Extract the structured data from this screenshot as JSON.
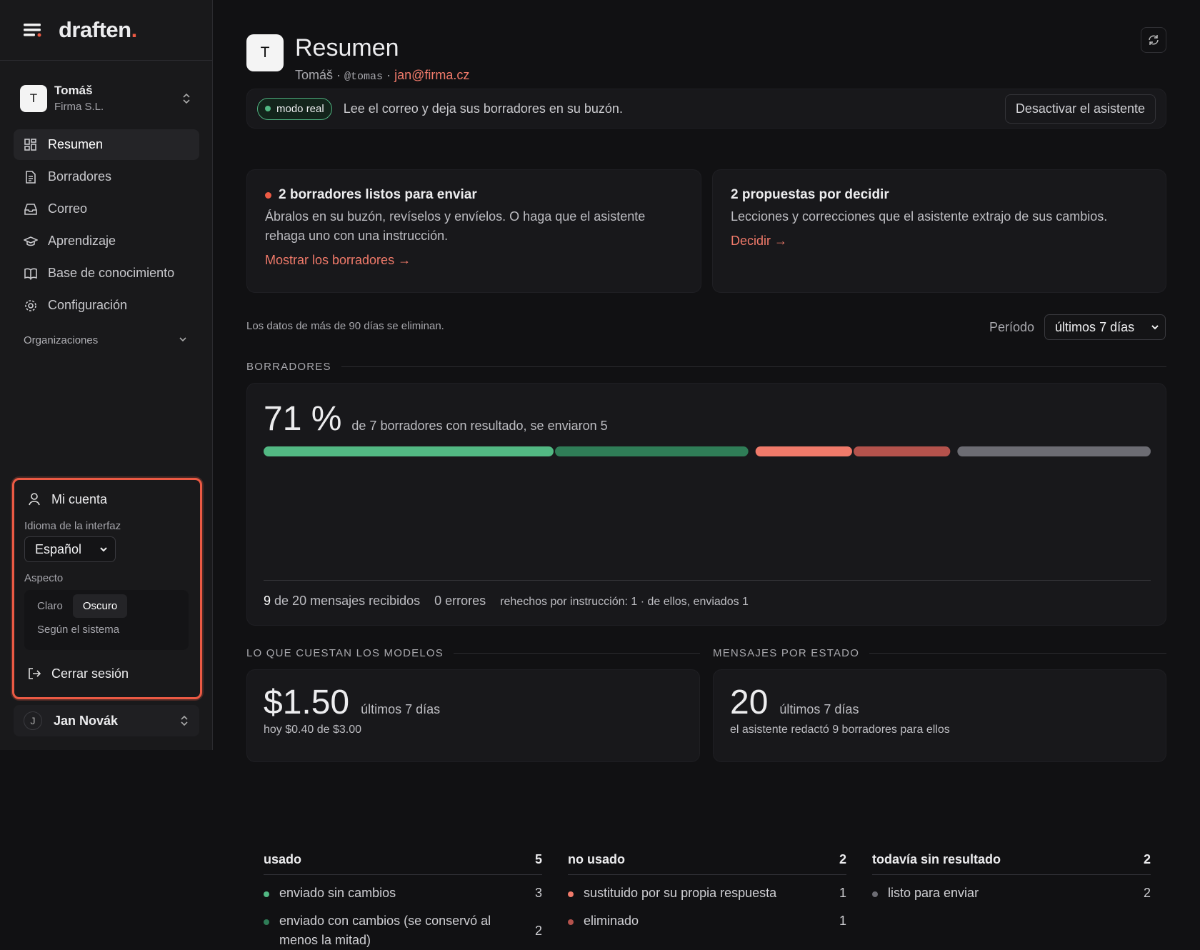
{
  "sidebar": {
    "brand": "draften",
    "brand_dot": ".",
    "org": {
      "avatar": "T",
      "name": "Tomáš",
      "company": "Firma S.L."
    },
    "nav": [
      "Resumen",
      "Borradores",
      "Correo",
      "Aprendizaje",
      "Base de conocimiento",
      "Configuración"
    ],
    "organizations": "Organizaciones",
    "account_menu": {
      "title": "Mi cuenta",
      "language_label": "Idioma de la interfaz",
      "language": "Español",
      "appearance_label": "Aspecto",
      "appearance_options": [
        "Claro",
        "Oscuro",
        "Según el sistema"
      ],
      "logout": "Cerrar sesión"
    },
    "user": {
      "avatar": "J",
      "name": "Jan Novák"
    }
  },
  "header": {
    "avatar": "T",
    "title": "Resumen",
    "name": "Tomáš",
    "separator": "·",
    "handle": "@tomas",
    "email": "jan@firma.cz"
  },
  "mode_banner": {
    "badge": "modo real",
    "text": "Lee el correo y deja sus borradores en su buzón.",
    "button": "Desactivar el asistente"
  },
  "cards": [
    {
      "title": "2 borradores listos para enviar",
      "text": "Ábralos en su buzón, revíselos y envíelos. O haga que el asistente rehaga uno con una instrucción.",
      "link": "Mostrar los borradores →"
    },
    {
      "title": "2 propuestas por decidir",
      "text": "Lecciones y correcciones que el asistente extrajo de sus cambios.",
      "link": "Decidir →"
    }
  ],
  "retention_note": "Los datos de más de 90 días se eliminan.",
  "period": {
    "label": "Período",
    "value": "últimos 7 días"
  },
  "drafts": {
    "section": "BORRADORES",
    "headline": "71 %",
    "headline_text": "de 7 borradores con resultado, se enviaron 5",
    "groups": [
      {
        "name": "usado",
        "total": 5,
        "items": [
          {
            "label": "enviado sin cambios",
            "count": 3,
            "color": "#52b883"
          },
          {
            "label": "enviado con cambios (se conservó al menos la mitad)",
            "count": 2,
            "color": "#2f7d57"
          }
        ]
      },
      {
        "name": "no usado",
        "total": 2,
        "items": [
          {
            "label": "sustituido por su propia respuesta",
            "count": 1,
            "color": "#f07a6a"
          },
          {
            "label": "eliminado",
            "count": 1,
            "color": "#b4524c"
          }
        ]
      },
      {
        "name": "todavía sin resultado",
        "total": 2,
        "items": [
          {
            "label": "listo para enviar",
            "count": 2,
            "color": "#6c6c73"
          }
        ]
      }
    ],
    "received_count": 9,
    "received_text": "de 20 mensajes recibidos",
    "errors": "0 errores",
    "redone": "rehechos por instrucción: 1 · de ellos, enviados 1"
  },
  "costs": {
    "section": "LO QUE CUESTAN LOS MODELOS",
    "value": "$1.50",
    "period": "últimos 7 días",
    "sub": "hoy $0.40 de $3.00"
  },
  "messages": {
    "section": "MENSAJES POR ESTADO",
    "value": 20,
    "period": "últimos 7 días",
    "sub": "el asistente redactó 9 borradores para ellos"
  }
}
